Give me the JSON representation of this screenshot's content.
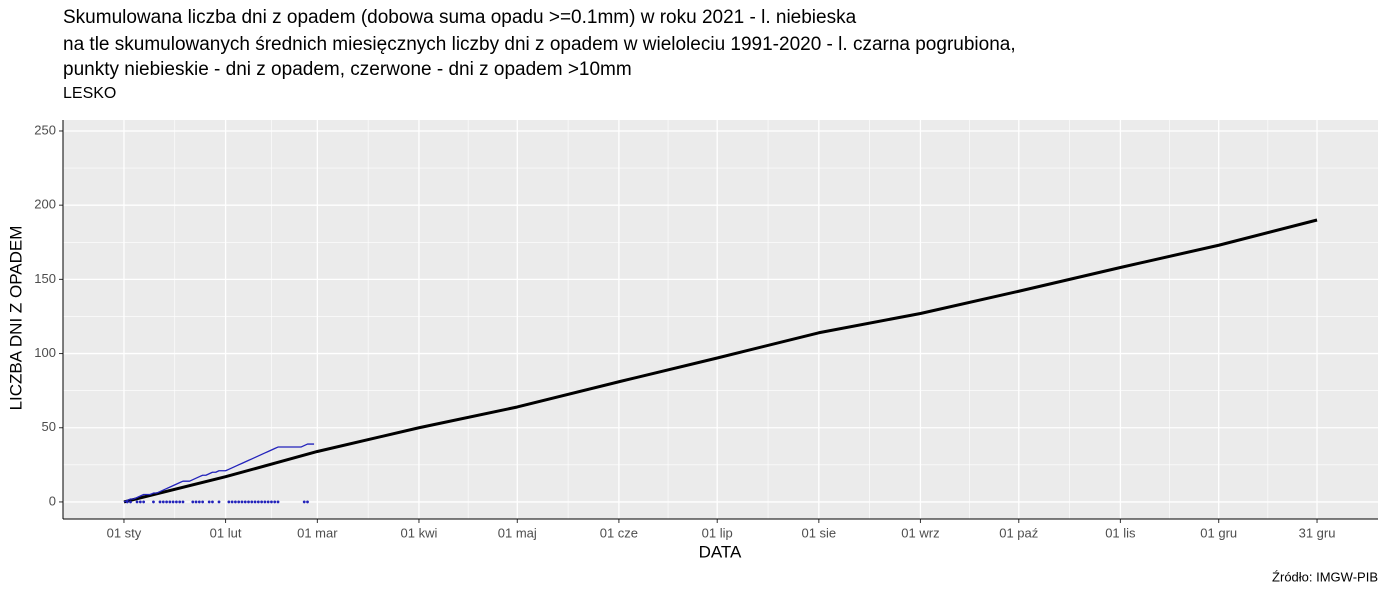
{
  "chart_data": {
    "type": "line",
    "title": [
      "Skumulowana liczba dni z opadem (dobowa suma opadu >=0.1mm) w roku 2021 - l. niebieska",
      "na tle skumulowanych średnich miesięcznych liczby dni z opadem w wieloleciu 1991-2020 - l. czarna pogrubiona,",
      "punkty niebieskie - dni z opadem, czerwone - dni z opadem >10mm"
    ],
    "subtitle": "LESKO",
    "x_label": "DATA",
    "y_label": "LICZBA DNI Z OPADEM",
    "source": "Źródło: IMGW-PIB",
    "xlim": [
      -18.6,
      382.6
    ],
    "ylim": [
      -11.5,
      257.4
    ],
    "xticks": [
      {
        "value": 0,
        "label": "01 sty"
      },
      {
        "value": 31,
        "label": "01 lut"
      },
      {
        "value": 59,
        "label": "01 mar"
      },
      {
        "value": 90,
        "label": "01 kwi"
      },
      {
        "value": 120,
        "label": "01 maj"
      },
      {
        "value": 151,
        "label": "01 cze"
      },
      {
        "value": 181,
        "label": "01 lip"
      },
      {
        "value": 212,
        "label": "01 sie"
      },
      {
        "value": 243,
        "label": "01 wrz"
      },
      {
        "value": 273,
        "label": "01 paź"
      },
      {
        "value": 304,
        "label": "01 lis"
      },
      {
        "value": 334,
        "label": "01 gru"
      },
      {
        "value": 364,
        "label": "31 gru"
      }
    ],
    "yticks": [
      0,
      50,
      100,
      150,
      200,
      250
    ],
    "grid": true,
    "series": [
      {
        "color": "#000000",
        "type": "line",
        "width": 3,
        "x": [
          0,
          31,
          59,
          90,
          120,
          151,
          181,
          212,
          243,
          273,
          304,
          334,
          364
        ],
        "values": [
          0,
          17,
          34,
          50,
          64,
          81,
          97,
          114,
          127,
          142,
          158,
          173,
          190
        ]
      },
      {
        "color": "#2222bb",
        "type": "line",
        "width": 1.3,
        "x": [
          0,
          1,
          2,
          3,
          4,
          5,
          6,
          7,
          8,
          9,
          10,
          11,
          12,
          13,
          14,
          15,
          16,
          17,
          18,
          19,
          20,
          21,
          22,
          23,
          24,
          25,
          26,
          27,
          28,
          29,
          30,
          31,
          32,
          33,
          34,
          35,
          36,
          37,
          38,
          39,
          40,
          41,
          42,
          43,
          44,
          45,
          46,
          47,
          48,
          49,
          50,
          51,
          52,
          53,
          54,
          55,
          56,
          57,
          58
        ],
        "values": [
          0,
          1,
          2,
          2,
          3,
          4,
          5,
          5,
          5,
          6,
          6,
          7,
          8,
          9,
          10,
          11,
          12,
          13,
          14,
          14,
          14,
          15,
          16,
          17,
          18,
          18,
          19,
          20,
          20,
          21,
          21,
          21,
          22,
          23,
          24,
          25,
          26,
          27,
          28,
          29,
          30,
          31,
          32,
          33,
          34,
          35,
          36,
          37,
          37,
          37,
          37,
          37,
          37,
          37,
          37,
          38,
          39,
          39,
          39
        ]
      },
      {
        "color": "#2222bb",
        "type": "scatter",
        "x": [
          1,
          2,
          4,
          5,
          6,
          9,
          11,
          12,
          13,
          14,
          15,
          16,
          17,
          18,
          21,
          22,
          23,
          24,
          26,
          27,
          29,
          32,
          33,
          34,
          35,
          36,
          37,
          38,
          39,
          40,
          41,
          42,
          43,
          44,
          45,
          46,
          47,
          55,
          56
        ],
        "values": [
          0,
          0,
          0,
          0,
          0,
          0,
          0,
          0,
          0,
          0,
          0,
          0,
          0,
          0,
          0,
          0,
          0,
          0,
          0,
          0,
          0,
          0,
          0,
          0,
          0,
          0,
          0,
          0,
          0,
          0,
          0,
          0,
          0,
          0,
          0,
          0,
          0,
          0,
          0
        ]
      }
    ]
  }
}
